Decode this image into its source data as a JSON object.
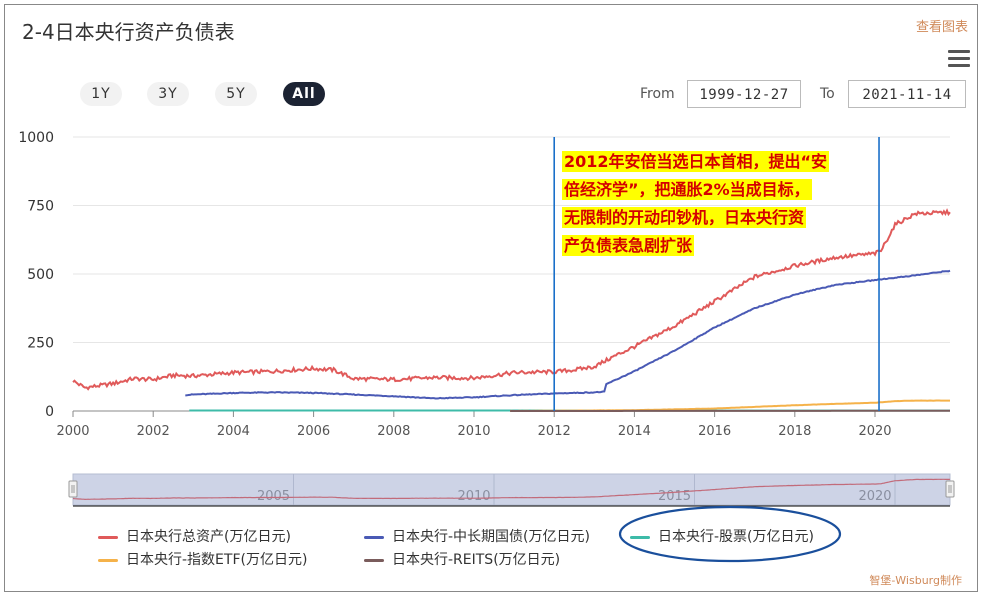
{
  "header": {
    "title": "2-4日本央行资产负债表",
    "view_link": "查看图表"
  },
  "range_buttons": [
    {
      "label": "1Y",
      "active": false
    },
    {
      "label": "3Y",
      "active": false
    },
    {
      "label": "5Y",
      "active": false
    },
    {
      "label": "All",
      "active": true
    }
  ],
  "date_range": {
    "from_label": "From",
    "from_value": "1999-12-27",
    "to_label": "To",
    "to_value": "2021-11-14"
  },
  "annotation": {
    "lines": [
      "2012年安倍当选日本首相，提出“安",
      "倍经济学”，把通胀2%当成目标，",
      "无限制的开动印钞机，日本央行资",
      "产负债表急剧扩张"
    ],
    "text_color": "#d40000",
    "bg_color": "#ffff00"
  },
  "watermark": "智堡-Wisburg制作",
  "chart_data": {
    "type": "line",
    "title": "2-4日本央行资产负债表",
    "xlabel": "",
    "ylabel": "",
    "xlim": [
      2000,
      2021.87
    ],
    "ylim": [
      0,
      1000
    ],
    "y_ticks": [
      0,
      250,
      500,
      750,
      1000
    ],
    "x_ticks": [
      2000,
      2002,
      2004,
      2006,
      2008,
      2010,
      2012,
      2014,
      2016,
      2018,
      2020
    ],
    "grid": true,
    "legend_position": "bottom",
    "vertical_markers": [
      2012,
      2020.1
    ],
    "navigator_ticks": [
      2005,
      2010,
      2015,
      2020
    ],
    "series": [
      {
        "name": "日本央行总资产(万亿日元)",
        "color": "#e05a5a",
        "x": [
          2000,
          2000.3,
          2001,
          2001.5,
          2002,
          2002.5,
          2003,
          2004,
          2005,
          2006,
          2006.5,
          2007,
          2008,
          2009,
          2010,
          2011,
          2012,
          2012.5,
          2013,
          2013.5,
          2014,
          2015,
          2016,
          2017,
          2018,
          2019,
          2020,
          2020.15,
          2020.5,
          2021,
          2021.87
        ],
        "values": [
          110,
          85,
          100,
          118,
          115,
          130,
          128,
          140,
          145,
          155,
          150,
          118,
          115,
          122,
          120,
          140,
          143,
          150,
          162,
          200,
          235,
          310,
          400,
          490,
          530,
          560,
          575,
          585,
          680,
          720,
          725
        ]
      },
      {
        "name": "日本央行-中长期国债(万亿日元)",
        "color": "#4a5ab5",
        "x": [
          2002.8,
          2003,
          2004,
          2005,
          2006,
          2007,
          2008,
          2009,
          2010,
          2011,
          2012,
          2013,
          2013.25,
          2013.3,
          2014,
          2015,
          2016,
          2017,
          2018,
          2019,
          2020,
          2021,
          2021.87
        ],
        "values": [
          58,
          60,
          66,
          68,
          66,
          60,
          54,
          46,
          50,
          58,
          64,
          68,
          70,
          98,
          145,
          220,
          305,
          375,
          425,
          460,
          478,
          495,
          512
        ]
      },
      {
        "name": "日本央行-股票(万亿日元)",
        "color": "#3dbba8",
        "x": [
          2002.9,
          2004,
          2006,
          2008,
          2010,
          2011,
          2012,
          2014,
          2016,
          2018,
          2020,
          2021.87
        ],
        "values": [
          2,
          2,
          2,
          2,
          2,
          2,
          1.5,
          1.5,
          1.5,
          1.5,
          1.5,
          1.5
        ]
      },
      {
        "name": "日本央行-指数ETF(万亿日元)",
        "color": "#f5b24a",
        "x": [
          2010.9,
          2012,
          2013,
          2014,
          2015,
          2016,
          2017,
          2018,
          2019,
          2020,
          2020.5,
          2021,
          2021.87
        ],
        "values": [
          0,
          1,
          2,
          3,
          6,
          9,
          15,
          21,
          26,
          30,
          36,
          38,
          38
        ]
      },
      {
        "name": "日本央行-REITS(万亿日元)",
        "color": "#7a5c5c",
        "x": [
          2010.9,
          2014,
          2018,
          2021.87
        ],
        "values": [
          0,
          0.2,
          0.5,
          0.7
        ]
      }
    ]
  }
}
